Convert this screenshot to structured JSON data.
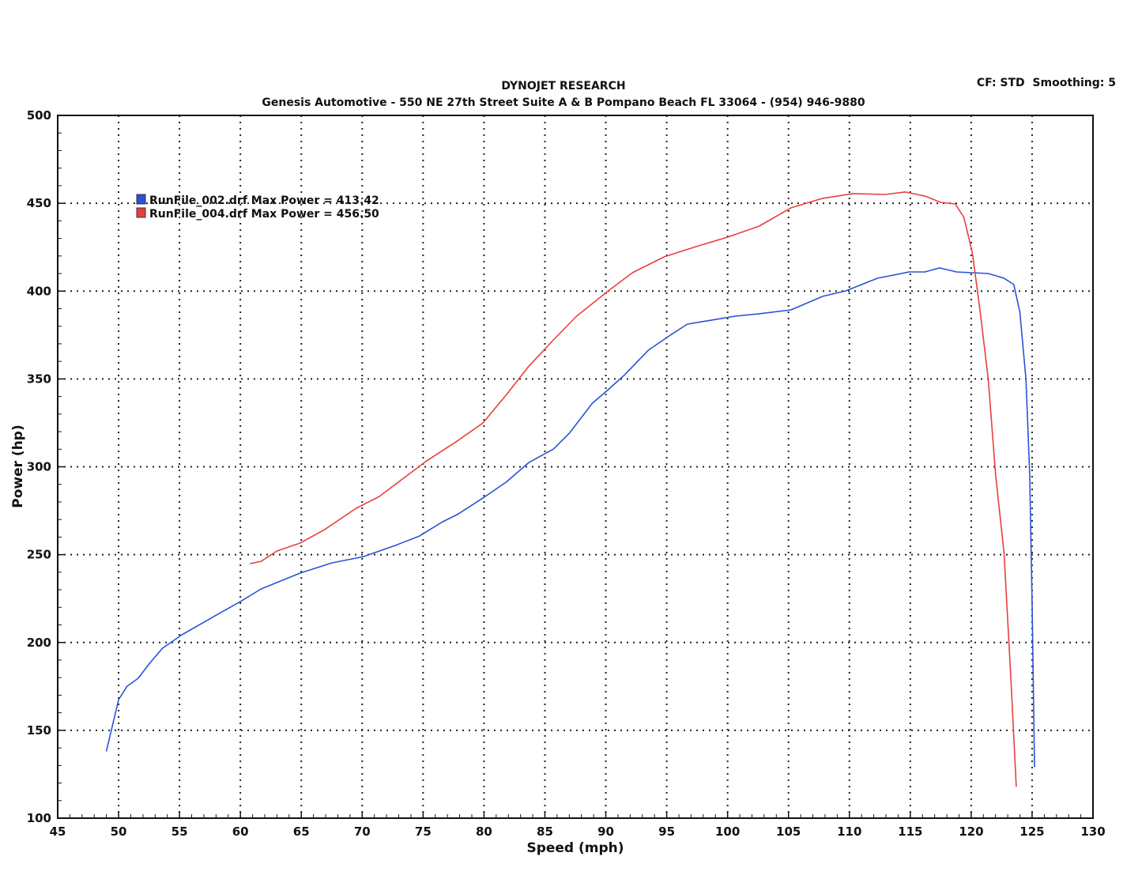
{
  "chart_data": {
    "type": "line",
    "title": "DYNOJET RESEARCH",
    "subtitle": "Genesis Automotive - 550 NE 27th Street Suite A & B Pompano Beach FL 33064 - (954) 946-9880",
    "annotation": "CF: STD  Smoothing: 5",
    "xlabel": "Speed (mph)",
    "ylabel": "Power (hp)",
    "xlim": [
      45,
      130
    ],
    "ylim": [
      100,
      500
    ],
    "xticks": [
      45,
      50,
      55,
      60,
      65,
      70,
      75,
      80,
      85,
      90,
      95,
      100,
      105,
      110,
      115,
      120,
      125,
      130
    ],
    "yticks": [
      100,
      150,
      200,
      250,
      300,
      350,
      400,
      450,
      500
    ],
    "grid": true,
    "legend_placement": "top-left",
    "series": [
      {
        "name": "RunFile_002.drf Max Power = 413.42",
        "color": "#2a52d6",
        "points": [
          [
            49.0,
            138.2
          ],
          [
            50.0,
            167.5
          ],
          [
            50.7,
            175.1
          ],
          [
            51.6,
            179.6
          ],
          [
            52.6,
            188.6
          ],
          [
            53.6,
            196.7
          ],
          [
            55.2,
            204.4
          ],
          [
            57.8,
            214.7
          ],
          [
            60.1,
            223.7
          ],
          [
            61.7,
            230.5
          ],
          [
            64.9,
            239.5
          ],
          [
            67.5,
            245.3
          ],
          [
            70.1,
            248.9
          ],
          [
            72.7,
            255.2
          ],
          [
            74.7,
            260.6
          ],
          [
            76.6,
            268.7
          ],
          [
            77.9,
            273.2
          ],
          [
            79.9,
            282.2
          ],
          [
            81.8,
            291.2
          ],
          [
            83.7,
            302.5
          ],
          [
            85.7,
            310.1
          ],
          [
            87.0,
            319.1
          ],
          [
            88.9,
            336.2
          ],
          [
            90.2,
            343.9
          ],
          [
            91.5,
            352.0
          ],
          [
            93.5,
            366.4
          ],
          [
            95.4,
            375.4
          ],
          [
            96.7,
            381.2
          ],
          [
            98.7,
            383.5
          ],
          [
            100.6,
            385.7
          ],
          [
            102.6,
            387.1
          ],
          [
            105.2,
            389.3
          ],
          [
            107.8,
            397.0
          ],
          [
            109.7,
            400.1
          ],
          [
            112.3,
            407.3
          ],
          [
            114.9,
            410.9
          ],
          [
            116.2,
            410.9
          ],
          [
            117.4,
            413.2
          ],
          [
            118.8,
            410.9
          ],
          [
            121.4,
            410.0
          ],
          [
            122.7,
            407.3
          ],
          [
            123.5,
            403.7
          ],
          [
            124.0,
            388.0
          ],
          [
            124.5,
            349.7
          ],
          [
            124.8,
            295.7
          ],
          [
            125.0,
            223.7
          ],
          [
            125.2,
            129.2
          ]
        ]
      },
      {
        "name": "RunFile_004.drf Max Power = 456.50",
        "color": "#e8403c",
        "points": [
          [
            60.8,
            244.9
          ],
          [
            61.7,
            246.2
          ],
          [
            63.0,
            252.1
          ],
          [
            64.9,
            256.6
          ],
          [
            66.9,
            264.2
          ],
          [
            69.5,
            276.4
          ],
          [
            71.4,
            283.1
          ],
          [
            73.4,
            293.5
          ],
          [
            75.3,
            303.4
          ],
          [
            77.9,
            315.1
          ],
          [
            79.9,
            324.9
          ],
          [
            81.8,
            340.7
          ],
          [
            83.7,
            357.4
          ],
          [
            85.7,
            372.2
          ],
          [
            87.6,
            385.7
          ],
          [
            90.2,
            400.1
          ],
          [
            92.2,
            410.5
          ],
          [
            94.8,
            419.5
          ],
          [
            97.4,
            425.3
          ],
          [
            100.0,
            430.7
          ],
          [
            102.6,
            437.0
          ],
          [
            105.2,
            447.4
          ],
          [
            107.8,
            452.8
          ],
          [
            110.3,
            455.5
          ],
          [
            112.9,
            455.0
          ],
          [
            114.6,
            456.4
          ],
          [
            116.2,
            454.1
          ],
          [
            117.5,
            450.5
          ],
          [
            118.7,
            449.6
          ],
          [
            119.4,
            442.0
          ],
          [
            120.1,
            421.7
          ],
          [
            120.7,
            390.2
          ],
          [
            121.4,
            349.7
          ],
          [
            122.0,
            295.7
          ],
          [
            122.7,
            250.7
          ],
          [
            123.3,
            174.2
          ],
          [
            123.7,
            118.0
          ]
        ]
      }
    ]
  }
}
